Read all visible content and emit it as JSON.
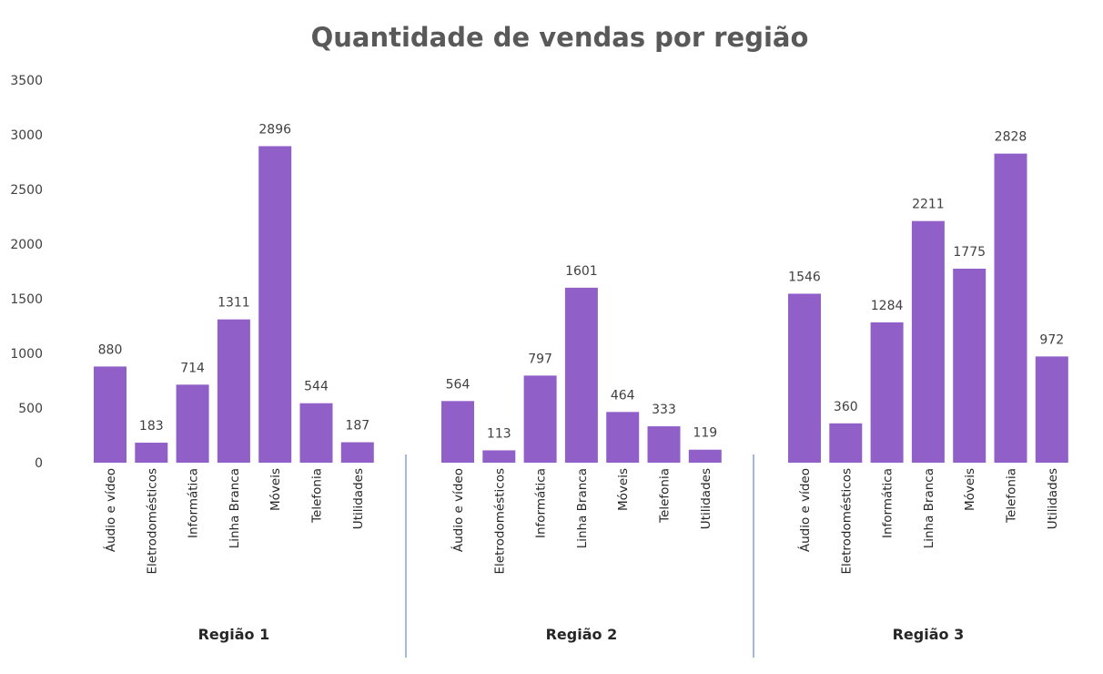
{
  "chart_data": {
    "type": "bar",
    "title": "Quantidade de vendas por região",
    "xlabel": "",
    "ylabel": "",
    "ylim": [
      0,
      3500
    ],
    "yticks": [
      0,
      500,
      1000,
      1500,
      2000,
      2500,
      3000,
      3500
    ],
    "grid": false,
    "legend": "none",
    "bar_color": "#9060C8",
    "divider_color": "#4472C4",
    "groups": [
      {
        "name": "Região 1",
        "categories": [
          "Áudio e vídeo",
          "Eletrodomésticos",
          "Informática",
          "Linha Branca",
          "Móveis",
          "Telefonia",
          "Utilidades"
        ],
        "values": [
          880,
          183,
          714,
          1311,
          2896,
          544,
          187
        ]
      },
      {
        "name": "Região 2",
        "categories": [
          "Áudio e vídeo",
          "Eletrodomésticos",
          "Informática",
          "Linha Branca",
          "Móveis",
          "Telefonia",
          "Utilidades"
        ],
        "values": [
          564,
          113,
          797,
          1601,
          464,
          333,
          119
        ]
      },
      {
        "name": "Região 3",
        "categories": [
          "Áudio e vídeo",
          "Eletrodomésticos",
          "Informática",
          "Linha Branca",
          "Móveis",
          "Telefonia",
          "Utilidades"
        ],
        "values": [
          1546,
          360,
          1284,
          2211,
          1775,
          2828,
          972
        ]
      }
    ]
  }
}
